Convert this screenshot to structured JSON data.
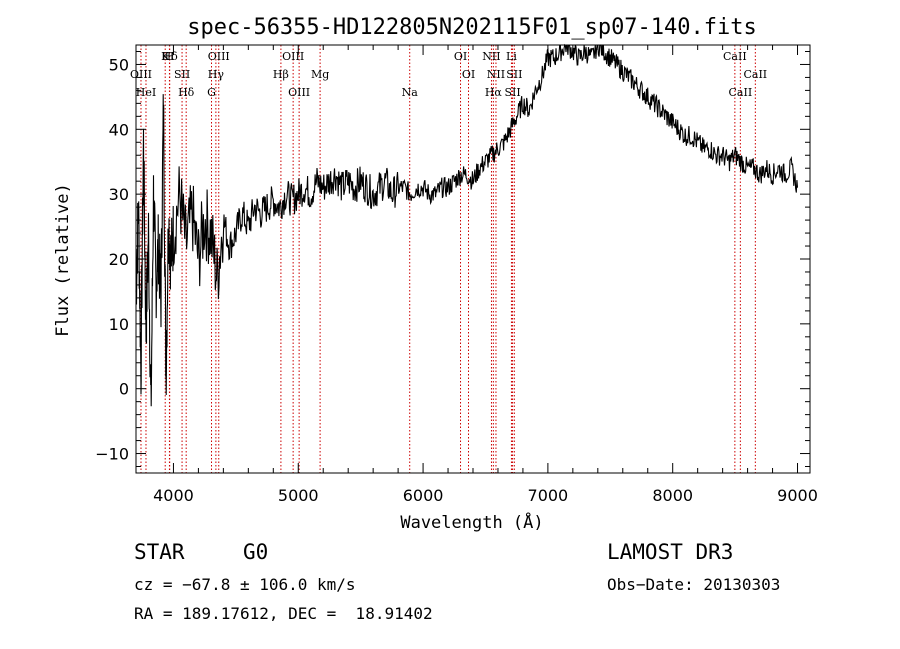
{
  "chart_data": {
    "type": "line",
    "title": "spec-56355-HD122805N202115F01_sp07-140.fits",
    "xlabel": "Wavelength (Å)",
    "ylabel": "Flux (relative)",
    "xlim": [
      3700,
      9100
    ],
    "ylim": [
      -13,
      53
    ],
    "xticks": [
      4000,
      5000,
      6000,
      7000,
      8000,
      9000
    ],
    "yticks": [
      -10,
      0,
      10,
      20,
      30,
      40,
      50
    ],
    "xtick_labels": [
      "4000",
      "5000",
      "6000",
      "7000",
      "8000",
      "9000"
    ],
    "ytick_labels": [
      "−10",
      "0",
      "10",
      "20",
      "30",
      "40",
      "50"
    ],
    "grid": false,
    "series_color": "#000000",
    "line_color": "#cc0000",
    "series": [
      {
        "x": [
          3700,
          3720,
          3740,
          3760,
          3780,
          3800,
          3820,
          3840,
          3860,
          3880,
          3900,
          3920,
          3940,
          3960,
          3980,
          4000,
          4050,
          4100,
          4150,
          4200,
          4250,
          4300,
          4350,
          4400,
          4450,
          4500,
          4550,
          4600,
          4650,
          4700,
          4750,
          4800,
          4850,
          4900,
          4950,
          5000,
          5050,
          5100,
          5150,
          5200,
          5250,
          5300,
          5350,
          5400,
          5450,
          5500,
          5550,
          5600,
          5650,
          5700,
          5750,
          5800,
          5850,
          5900,
          5950,
          6000,
          6050,
          6100,
          6150,
          6200,
          6250,
          6300,
          6350,
          6400,
          6450,
          6500,
          6550,
          6600,
          6650,
          6700,
          6750,
          6800,
          6850,
          6900,
          6950,
          7000,
          7050,
          7100,
          7150,
          7200,
          7250,
          7300,
          7350,
          7400,
          7450,
          7500,
          7550,
          7600,
          7650,
          7700,
          7750,
          7800,
          7850,
          7900,
          7950,
          8000,
          8050,
          8100,
          8150,
          8200,
          8250,
          8300,
          8350,
          8400,
          8450,
          8500,
          8550,
          8600,
          8650,
          8700,
          8750,
          8800,
          8850,
          8900,
          8950,
          9000
        ],
        "y": [
          15,
          28,
          3,
          38,
          9,
          24,
          -4,
          30,
          16,
          22,
          14,
          44,
          2,
          26,
          20,
          24,
          30,
          22,
          27,
          20,
          26,
          24,
          17,
          26,
          22,
          24,
          27,
          25,
          28,
          27,
          28,
          29,
          28,
          30,
          29,
          30,
          31,
          30,
          32,
          31,
          32,
          33,
          31,
          32,
          31,
          32,
          31,
          30,
          31,
          32,
          30,
          31,
          31,
          30,
          31,
          31,
          30,
          30,
          31,
          31,
          32,
          33,
          33,
          32,
          34,
          35,
          36,
          37,
          38,
          40,
          42,
          44,
          43,
          46,
          48,
          51,
          51,
          52,
          53,
          52,
          51,
          52,
          51,
          53,
          52,
          51,
          50,
          49,
          48,
          47,
          46,
          45,
          44,
          43,
          42,
          41,
          40,
          39,
          39,
          38,
          37,
          37,
          36,
          36,
          35,
          36,
          35,
          34,
          34,
          33,
          34,
          33,
          34,
          33,
          34,
          31
        ]
      }
    ],
    "lines": [
      {
        "label": "Hδ",
        "x": 3970
      },
      {
        "label": "OIII",
        "x": 3740
      },
      {
        "label": "HeI",
        "x": 3780
      },
      {
        "label": "K",
        "x": 3934
      },
      {
        "label": "SII",
        "x": 4069
      },
      {
        "label": "Hδ",
        "x": 4102
      },
      {
        "label": "OIII",
        "x": 4363
      },
      {
        "label": "Hγ",
        "x": 4340
      },
      {
        "label": "G",
        "x": 4305
      },
      {
        "label": "H",
        "x": 3968
      },
      {
        "label": "Hβ",
        "x": 4861
      },
      {
        "label": "OIII",
        "x": 5007
      },
      {
        "label": "OIII",
        "x": 4959
      },
      {
        "label": "Mg",
        "x": 5175
      },
      {
        "label": "Na",
        "x": 5893
      },
      {
        "label": "OI",
        "x": 6300
      },
      {
        "label": "OI",
        "x": 6364
      },
      {
        "label": "Hα",
        "x": 6563
      },
      {
        "label": "NII",
        "x": 6548
      },
      {
        "label": "NII",
        "x": 6584
      },
      {
        "label": "SII",
        "x": 6717
      },
      {
        "label": "Li",
        "x": 6708
      },
      {
        "label": "SII",
        "x": 6731
      },
      {
        "label": "CaII",
        "x": 8542
      },
      {
        "label": "CaII",
        "x": 8498
      },
      {
        "label": "CaII",
        "x": 8662
      }
    ]
  },
  "info": {
    "object_class": "STAR",
    "subclass": "G0",
    "survey": "LAMOST DR3",
    "redshift": "cz = −67.8 ± 106.0 km/s",
    "obs_date": "Obs−Date: 20130303",
    "coords": "RA = 189.17612, DEC =  18.91402"
  }
}
